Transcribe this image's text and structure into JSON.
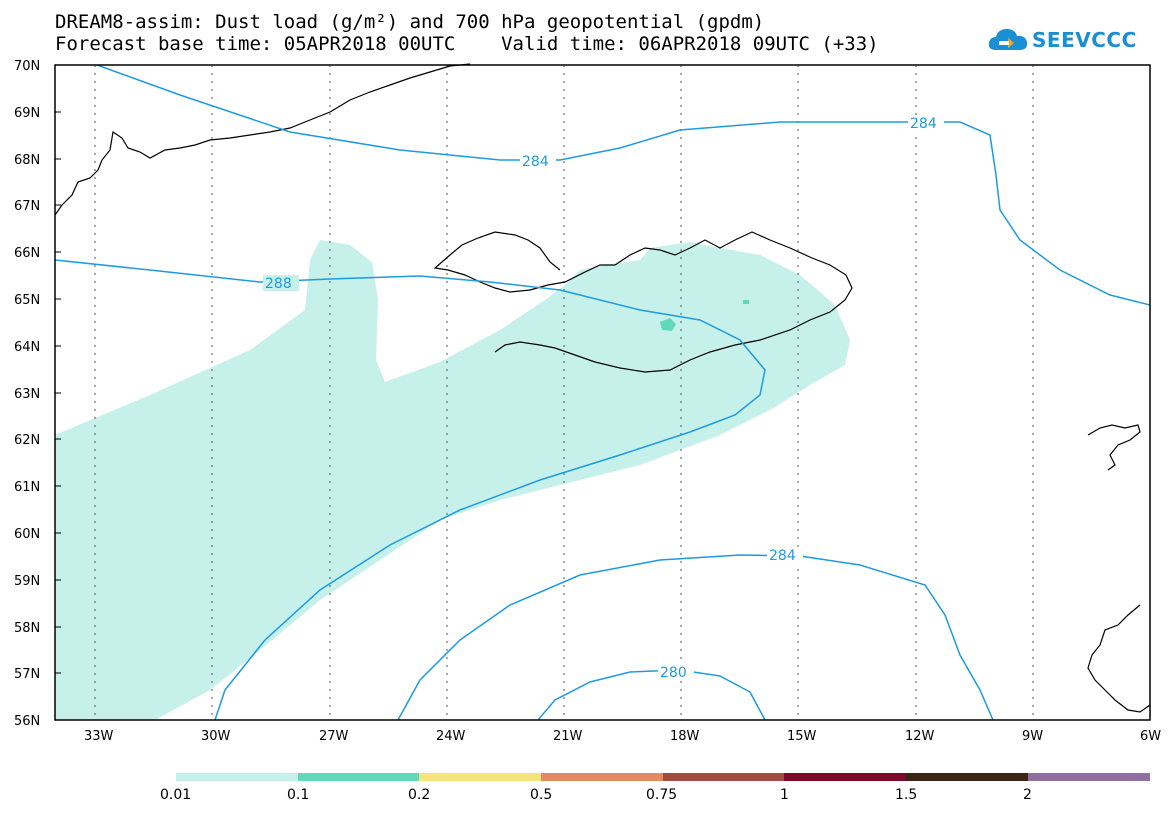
{
  "header": {
    "title_line1": "DREAM8-assim: Dust load (g/m²) and 700 hPa geopotential (gpdm)",
    "title_line2": "Forecast base time: 05APR2018 00UTC    Valid time: 06APR2018 09UTC (+33)"
  },
  "logo": {
    "text": "SEEVCCC",
    "icon": "cloud-logo-icon",
    "color": "#1a8fd6"
  },
  "map": {
    "lat_labels": [
      "70N",
      "69N",
      "68N",
      "67N",
      "66N",
      "65N",
      "64N",
      "63N",
      "62N",
      "61N",
      "60N",
      "59N",
      "58N",
      "57N",
      "56N"
    ],
    "lon_labels": [
      "33W",
      "30W",
      "27W",
      "24W",
      "21W",
      "18W",
      "15W",
      "12W",
      "9W",
      "6W"
    ],
    "contour_labels": [
      "284",
      "284",
      "288",
      "284",
      "280"
    ],
    "contour_color": "#1e9be0",
    "dust_color": "#c6f0ea",
    "dust_spot_color": "#5fd8bb"
  },
  "colorbar": {
    "labels": [
      "0.01",
      "0.1",
      "0.2",
      "0.5",
      "0.75",
      "1",
      "1.5",
      "2"
    ],
    "colors": [
      "#c6f0ea",
      "#5fd8bb",
      "#f5e47a",
      "#e38a62",
      "#a24c44",
      "#7b0a2a",
      "#3a2414",
      "#9070a0"
    ]
  }
}
